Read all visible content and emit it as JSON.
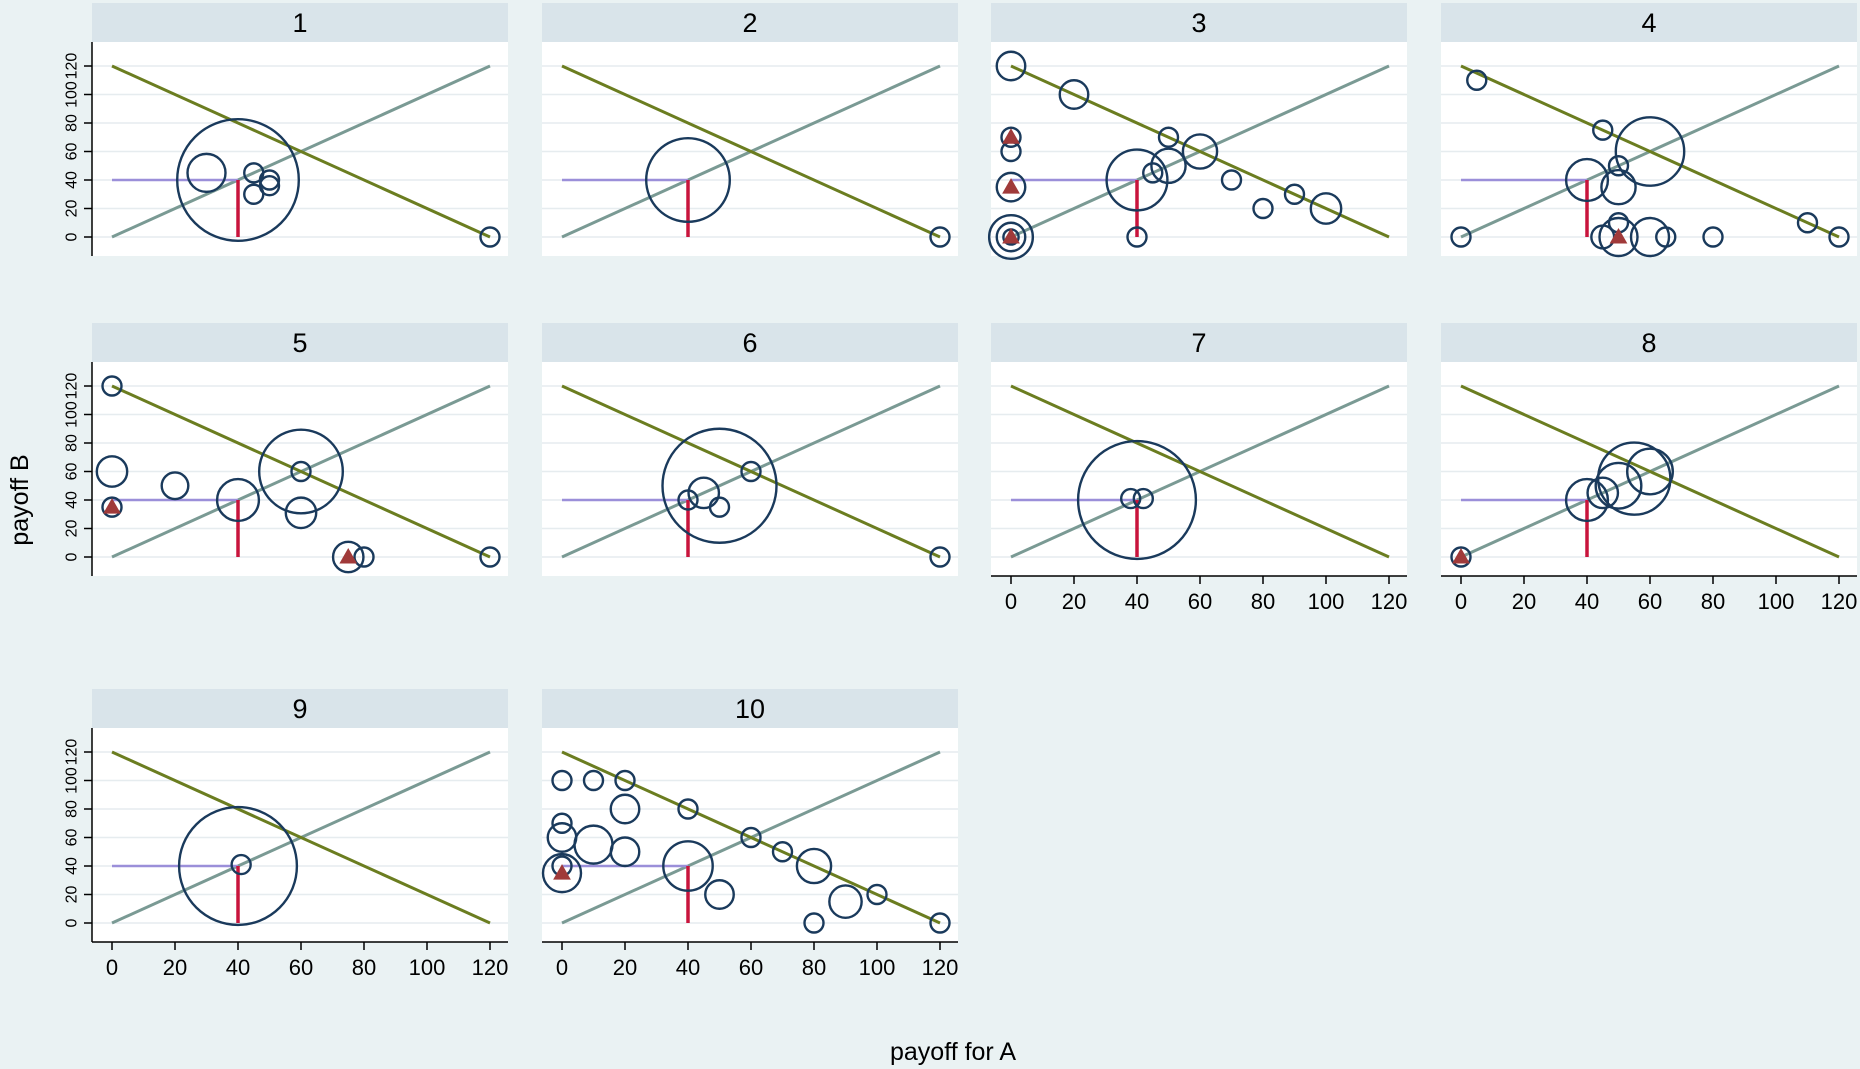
{
  "figure": {
    "ylabel": "payoff B",
    "xlabel": "payoff for A",
    "colors": {
      "page_bg": "#eaf2f3",
      "plot_bg": "#ffffff",
      "header_bg": "#d9e4ea",
      "grid": "#e6ecef",
      "circle": "#1a3a5c",
      "triangle": "#a03a3a",
      "diag_up": "#7a9a94",
      "diag_down": "#6b7d20",
      "ref_h": "#9b8fd9",
      "ref_v": "#c8143c"
    }
  },
  "chart_data": {
    "type": "scatter",
    "xlim": [
      0,
      120
    ],
    "ylim": [
      0,
      120
    ],
    "xticks": [
      0,
      20,
      40,
      60,
      80,
      100,
      120
    ],
    "yticks": [
      0,
      20,
      40,
      60,
      80,
      100,
      120
    ],
    "grid": true,
    "reference_lines": {
      "equal_split": [
        [
          0,
          0
        ],
        [
          120,
          120
        ]
      ],
      "efficiency_frontier": [
        [
          0,
          120
        ],
        [
          120,
          0
        ]
      ],
      "horizontal_ref": [
        [
          0,
          40
        ],
        [
          40,
          40
        ]
      ],
      "vertical_ref": [
        [
          40,
          0
        ],
        [
          40,
          40
        ]
      ]
    },
    "panels": [
      {
        "title": "1",
        "points": [
          [
            40,
            40,
            3.2
          ],
          [
            30,
            45,
            1.0
          ],
          [
            45,
            45,
            0.5
          ],
          [
            50,
            40,
            0.5
          ],
          [
            50,
            36,
            0.5
          ],
          [
            45,
            30,
            0.5
          ],
          [
            120,
            0,
            0.5
          ]
        ],
        "triangles": []
      },
      {
        "title": "2",
        "points": [
          [
            40,
            40,
            2.2
          ],
          [
            120,
            0,
            0.5
          ]
        ],
        "triangles": []
      },
      {
        "title": "3",
        "points": [
          [
            0,
            120,
            0.75
          ],
          [
            20,
            100,
            0.75
          ],
          [
            0,
            70,
            0.5
          ],
          [
            0,
            60,
            0.5
          ],
          [
            50,
            70,
            0.5
          ],
          [
            60,
            60,
            0.9
          ],
          [
            50,
            50,
            0.9
          ],
          [
            45,
            45,
            0.5
          ],
          [
            40,
            40,
            1.6
          ],
          [
            70,
            40,
            0.5
          ],
          [
            0,
            35,
            0.75
          ],
          [
            90,
            30,
            0.5
          ],
          [
            80,
            20,
            0.5
          ],
          [
            100,
            20,
            0.8
          ],
          [
            0,
            0,
            1.15
          ],
          [
            0,
            0,
            0.75
          ],
          [
            0,
            0,
            0.4
          ],
          [
            40,
            0,
            0.5
          ]
        ],
        "triangles": [
          [
            0,
            70
          ],
          [
            0,
            35
          ],
          [
            0,
            0
          ]
        ]
      },
      {
        "title": "4",
        "points": [
          [
            5,
            110,
            0.5
          ],
          [
            45,
            75,
            0.5
          ],
          [
            60,
            60,
            1.8
          ],
          [
            50,
            50,
            0.5
          ],
          [
            40,
            40,
            1.1
          ],
          [
            50,
            35,
            0.9
          ],
          [
            0,
            0,
            0.5
          ],
          [
            50,
            10,
            0.5
          ],
          [
            45,
            0,
            0.6
          ],
          [
            50,
            0,
            1.0
          ],
          [
            60,
            0,
            1.0
          ],
          [
            65,
            0,
            0.5
          ],
          [
            80,
            0,
            0.5
          ],
          [
            110,
            10,
            0.5
          ],
          [
            120,
            0,
            0.5
          ]
        ],
        "triangles": [
          [
            50,
            0
          ]
        ]
      },
      {
        "title": "5",
        "points": [
          [
            0,
            120,
            0.5
          ],
          [
            0,
            60,
            0.8
          ],
          [
            20,
            50,
            0.7
          ],
          [
            60,
            60,
            2.2
          ],
          [
            60,
            60,
            0.5
          ],
          [
            40,
            40,
            1.1
          ],
          [
            60,
            31,
            0.8
          ],
          [
            0,
            35,
            0.5
          ],
          [
            75,
            0,
            0.8
          ],
          [
            80,
            0,
            0.5
          ],
          [
            120,
            0,
            0.5
          ]
        ],
        "triangles": [
          [
            0,
            35
          ],
          [
            75,
            0
          ]
        ]
      },
      {
        "title": "6",
        "points": [
          [
            50,
            50,
            3.0
          ],
          [
            60,
            60,
            0.5
          ],
          [
            45,
            45,
            0.8
          ],
          [
            40,
            40,
            0.5
          ],
          [
            50,
            35,
            0.5
          ],
          [
            120,
            0,
            0.5
          ]
        ],
        "triangles": []
      },
      {
        "title": "7",
        "points": [
          [
            40,
            40,
            3.1
          ],
          [
            38,
            41,
            0.5
          ],
          [
            42,
            41,
            0.5
          ]
        ],
        "triangles": []
      },
      {
        "title": "8",
        "points": [
          [
            60,
            60,
            1.2
          ],
          [
            55,
            55,
            1.9
          ],
          [
            50,
            50,
            1.2
          ],
          [
            45,
            45,
            0.8
          ],
          [
            40,
            40,
            1.1
          ],
          [
            0,
            0,
            0.5
          ]
        ],
        "triangles": [
          [
            0,
            0
          ]
        ]
      },
      {
        "title": "9",
        "points": [
          [
            40,
            40,
            3.1
          ],
          [
            41,
            41,
            0.5
          ]
        ],
        "triangles": []
      },
      {
        "title": "10",
        "points": [
          [
            0,
            100,
            0.5
          ],
          [
            10,
            100,
            0.5
          ],
          [
            20,
            100,
            0.5
          ],
          [
            20,
            80,
            0.75
          ],
          [
            40,
            80,
            0.5
          ],
          [
            0,
            70,
            0.5
          ],
          [
            0,
            60,
            0.75
          ],
          [
            10,
            55,
            1.0
          ],
          [
            20,
            50,
            0.75
          ],
          [
            60,
            60,
            0.5
          ],
          [
            70,
            50,
            0.5
          ],
          [
            80,
            40,
            0.9
          ],
          [
            40,
            40,
            1.3
          ],
          [
            0,
            35,
            1.0
          ],
          [
            0,
            40,
            0.5
          ],
          [
            50,
            20,
            0.75
          ],
          [
            90,
            15,
            0.85
          ],
          [
            100,
            20,
            0.5
          ],
          [
            80,
            0,
            0.5
          ],
          [
            120,
            0,
            0.5
          ]
        ],
        "triangles": [
          [
            0,
            35
          ]
        ]
      }
    ]
  }
}
